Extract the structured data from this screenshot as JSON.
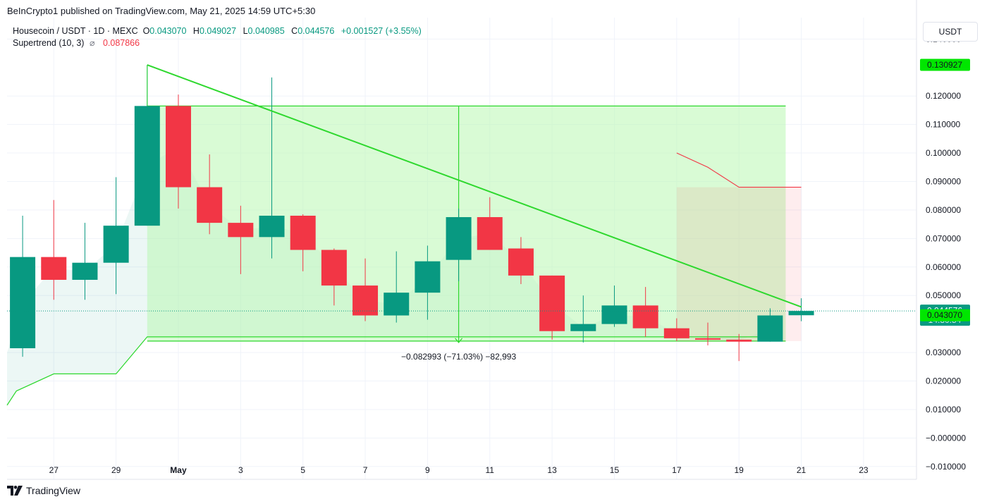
{
  "header": {
    "publisher": "BeInCrypto1 published on TradingView.com, May 21, 2025 14:59 UTC+5:30"
  },
  "legend": {
    "symbol": "Housecoin / USDT · 1D · MEXC",
    "open_label": "O",
    "open": "0.043070",
    "high_label": "H",
    "high": "0.049027",
    "low_label": "L",
    "low": "0.040985",
    "close_label": "C",
    "close": "0.044576",
    "change": "+0.001527 (+3.55%)",
    "indicator": "Supertrend (10, 3)",
    "indicator_icon": "hidden-eye-icon",
    "indicator_value": "0.087866"
  },
  "currency_button": "USDT",
  "branding": {
    "logo_text": "TradingView",
    "logo_icon": "tradingview-logo-icon"
  },
  "colors": {
    "up": "#089981",
    "down": "#f23645",
    "green_line": "#2ed82e",
    "zone_fill": "#b9f7b3",
    "supertrend_up": "#089981",
    "supertrend_down": "#f23645",
    "tag_green": "#00e600",
    "tag_teal": "#089981"
  },
  "chart_data": {
    "type": "candlestick",
    "ylim": [
      -0.0145,
      0.1475
    ],
    "xlim": [
      25.5,
      54.7
    ],
    "y_ticks": [
      "0.140000",
      "0.120000",
      "0.110000",
      "0.100000",
      "0.090000",
      "0.080000",
      "0.070000",
      "0.060000",
      "0.050000",
      "0.030000",
      "0.020000",
      "0.010000",
      "−0.000000",
      "−0.010000"
    ],
    "y_tick_values": [
      0.14,
      0.12,
      0.11,
      0.1,
      0.09,
      0.08,
      0.07,
      0.06,
      0.05,
      0.03,
      0.02,
      0.01,
      0.0,
      -0.01
    ],
    "x_ticks": [
      {
        "label": "27",
        "x": 27
      },
      {
        "label": "29",
        "x": 29
      },
      {
        "label": "May",
        "x": 31
      },
      {
        "label": "3",
        "x": 33
      },
      {
        "label": "5",
        "x": 35
      },
      {
        "label": "7",
        "x": 37
      },
      {
        "label": "9",
        "x": 39
      },
      {
        "label": "11",
        "x": 41
      },
      {
        "label": "13",
        "x": 43
      },
      {
        "label": "15",
        "x": 45
      },
      {
        "label": "17",
        "x": 47
      },
      {
        "label": "19",
        "x": 49
      },
      {
        "label": "21",
        "x": 51
      },
      {
        "label": "23",
        "x": 53
      }
    ],
    "candles": [
      {
        "x": 26,
        "o": 0.0315,
        "h": 0.078,
        "l": 0.0285,
        "c": 0.0635
      },
      {
        "x": 27,
        "o": 0.0635,
        "h": 0.0835,
        "l": 0.0485,
        "c": 0.0555
      },
      {
        "x": 28,
        "o": 0.0555,
        "h": 0.0755,
        "l": 0.0485,
        "c": 0.0615
      },
      {
        "x": 29,
        "o": 0.0615,
        "h": 0.0915,
        "l": 0.0505,
        "c": 0.0745
      },
      {
        "x": 30,
        "o": 0.0745,
        "h": 0.1309,
        "l": 0.0745,
        "c": 0.1165
      },
      {
        "x": 31,
        "o": 0.1165,
        "h": 0.1205,
        "l": 0.0805,
        "c": 0.088
      },
      {
        "x": 32,
        "o": 0.088,
        "h": 0.0995,
        "l": 0.0715,
        "c": 0.0755
      },
      {
        "x": 33,
        "o": 0.0755,
        "h": 0.0815,
        "l": 0.0575,
        "c": 0.0705
      },
      {
        "x": 34,
        "o": 0.0705,
        "h": 0.1265,
        "l": 0.063,
        "c": 0.078
      },
      {
        "x": 35,
        "o": 0.078,
        "h": 0.0785,
        "l": 0.0585,
        "c": 0.066
      },
      {
        "x": 36,
        "o": 0.066,
        "h": 0.0665,
        "l": 0.0465,
        "c": 0.0535
      },
      {
        "x": 37,
        "o": 0.0535,
        "h": 0.063,
        "l": 0.041,
        "c": 0.043
      },
      {
        "x": 38,
        "o": 0.043,
        "h": 0.0655,
        "l": 0.0405,
        "c": 0.051
      },
      {
        "x": 39,
        "o": 0.051,
        "h": 0.0675,
        "l": 0.0415,
        "c": 0.062
      },
      {
        "x": 40,
        "o": 0.0625,
        "h": 0.0805,
        "l": 0.055,
        "c": 0.0775
      },
      {
        "x": 41,
        "o": 0.0775,
        "h": 0.0845,
        "l": 0.066,
        "c": 0.066
      },
      {
        "x": 42,
        "o": 0.0665,
        "h": 0.0705,
        "l": 0.054,
        "c": 0.057
      },
      {
        "x": 43,
        "o": 0.057,
        "h": 0.057,
        "l": 0.0345,
        "c": 0.0375
      },
      {
        "x": 44,
        "o": 0.0375,
        "h": 0.05,
        "l": 0.0335,
        "c": 0.04
      },
      {
        "x": 45,
        "o": 0.04,
        "h": 0.0535,
        "l": 0.039,
        "c": 0.0465
      },
      {
        "x": 46,
        "o": 0.0465,
        "h": 0.053,
        "l": 0.0355,
        "c": 0.0385
      },
      {
        "x": 47,
        "o": 0.0385,
        "h": 0.042,
        "l": 0.034,
        "c": 0.035
      },
      {
        "x": 48,
        "o": 0.035,
        "h": 0.0405,
        "l": 0.0325,
        "c": 0.0345
      },
      {
        "x": 49,
        "o": 0.0345,
        "h": 0.0365,
        "l": 0.027,
        "c": 0.0338
      },
      {
        "x": 50,
        "o": 0.0338,
        "h": 0.0455,
        "l": 0.0338,
        "c": 0.043
      },
      {
        "x": 51,
        "o": 0.04307,
        "h": 0.049027,
        "l": 0.040985,
        "c": 0.044576
      }
    ],
    "supertrend_up": [
      [
        25.5,
        0.0115
      ],
      [
        25.8,
        0.0165
      ],
      [
        27,
        0.0225
      ],
      [
        29,
        0.0225
      ],
      [
        30,
        0.0355
      ],
      [
        50,
        0.0355
      ]
    ],
    "supertrend_down": [
      [
        47,
        0.1
      ],
      [
        48,
        0.095
      ],
      [
        49,
        0.088
      ],
      [
        51,
        0.088
      ]
    ],
    "trendline": [
      [
        30,
        0.1309
      ],
      [
        51,
        0.046
      ]
    ],
    "zone": {
      "x1": 30,
      "x2": 50.5,
      "y1": 0.034,
      "y2": 0.1165
    },
    "zone_pink": {
      "x1": 47,
      "x2": 51,
      "y1": 0.034,
      "y2": 0.088
    },
    "measure": {
      "x": 40,
      "y_from": 0.1165,
      "y_to": 0.0335,
      "label": "−0.082993 (−71.03%) −82,993"
    },
    "current_price": 0.044576,
    "price_tags": [
      {
        "value": 0.130927,
        "text": "0.130927",
        "style": "green"
      },
      {
        "value": 0.044576,
        "text": "0.044576",
        "sub": "14:30:54",
        "style": "teal"
      },
      {
        "value": 0.04307,
        "text": "0.043070",
        "style": "green"
      }
    ]
  }
}
